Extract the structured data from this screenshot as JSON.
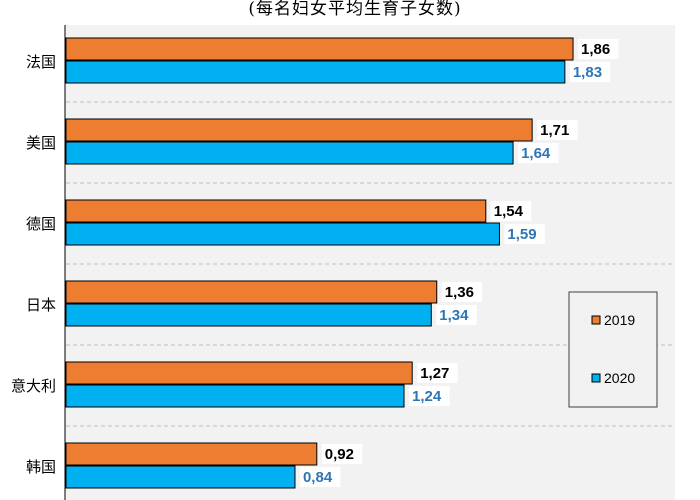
{
  "chart_data": {
    "type": "bar",
    "orientation": "horizontal",
    "subtitle": "(每名妇女平均生育子女数)",
    "categories": [
      "法国",
      "美国",
      "德国",
      "日本",
      "意大利",
      "韩国"
    ],
    "series": [
      {
        "name": "2019",
        "color": "#ED7D31",
        "label_color": "#000000",
        "values": [
          1.86,
          1.71,
          1.54,
          1.36,
          1.27,
          0.92
        ],
        "labels": [
          "1,86",
          "1,71",
          "1,54",
          "1,36",
          "1,27",
          "0,92"
        ]
      },
      {
        "name": "2020",
        "color": "#00B0F0",
        "label_color": "#2E75B6",
        "values": [
          1.83,
          1.64,
          1.59,
          1.34,
          1.24,
          0.84
        ],
        "labels": [
          "1,83",
          "1,64",
          "1,59",
          "1,34",
          "1,24",
          "0,84"
        ]
      }
    ],
    "xlim": [
      0,
      2.4
    ],
    "grid": "horizontal dashed",
    "legend_position": "right"
  }
}
